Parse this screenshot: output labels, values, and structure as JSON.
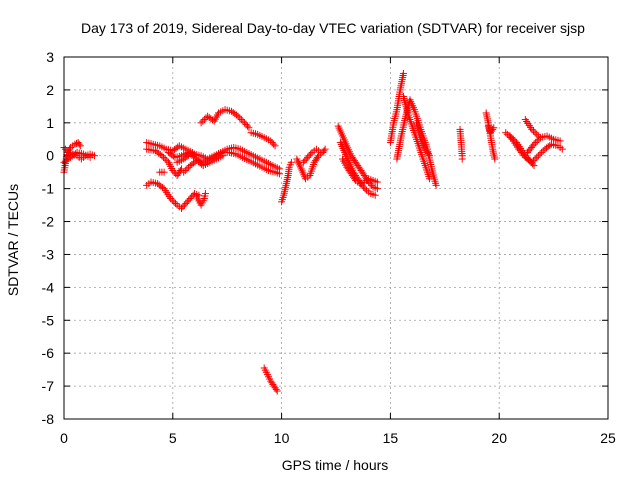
{
  "chart_data": {
    "type": "scatter",
    "title": "Day 173 of 2019, Sidereal Day-to-day VTEC variation (SDTVAR) for receiver sjsp",
    "xlabel": "GPS time / hours",
    "ylabel": "SDTVAR / TECUs",
    "xlim": [
      0,
      25
    ],
    "ylim": [
      -8,
      3
    ],
    "x_ticks": [
      "0",
      "5",
      "10",
      "15",
      "20",
      "25"
    ],
    "y_ticks": [
      "3",
      "2",
      "1",
      "0",
      "-1",
      "-2",
      "-3",
      "-4",
      "-5",
      "-6",
      "-7",
      "-8"
    ],
    "grid": true,
    "marker": "+",
    "marker_color": "#ff0000",
    "series": [
      {
        "name": "SDTVAR",
        "tracks": [
          [
            [
              0.0,
              -0.5
            ],
            [
              0.15,
              0.1
            ],
            [
              0.3,
              0.25
            ],
            [
              0.5,
              0.35
            ],
            [
              0.65,
              0.4
            ],
            [
              0.75,
              0.3
            ]
          ],
          [
            [
              0.0,
              0.25
            ],
            [
              0.2,
              0.1
            ],
            [
              0.4,
              0.05
            ],
            [
              0.6,
              0.0
            ],
            [
              0.8,
              -0.1
            ],
            [
              1.0,
              0.0
            ],
            [
              1.2,
              0.05
            ],
            [
              1.4,
              0.0
            ]
          ],
          [
            [
              0.0,
              -0.2
            ],
            [
              0.3,
              -0.05
            ],
            [
              0.6,
              0.1
            ],
            [
              0.9,
              0.05
            ],
            [
              1.2,
              -0.05
            ]
          ],
          [
            [
              3.8,
              0.4
            ],
            [
              4.1,
              0.35
            ],
            [
              4.4,
              0.3
            ],
            [
              4.7,
              0.2
            ],
            [
              5.0,
              0.15
            ],
            [
              5.3,
              0.3
            ],
            [
              5.6,
              0.2
            ],
            [
              5.9,
              0.1
            ]
          ],
          [
            [
              3.8,
              0.2
            ],
            [
              4.2,
              0.15
            ],
            [
              4.5,
              0.0
            ],
            [
              4.8,
              -0.2
            ],
            [
              5.0,
              -0.45
            ],
            [
              5.2,
              -0.6
            ],
            [
              5.4,
              -0.4
            ]
          ],
          [
            [
              3.8,
              -0.9
            ],
            [
              4.0,
              -0.8
            ],
            [
              4.3,
              -0.85
            ],
            [
              4.6,
              -1.0
            ],
            [
              4.9,
              -1.3
            ],
            [
              5.2,
              -1.5
            ],
            [
              5.4,
              -1.6
            ],
            [
              5.6,
              -1.45
            ],
            [
              5.8,
              -1.3
            ],
            [
              6.0,
              -1.15
            ],
            [
              6.2,
              -1.2
            ]
          ],
          [
            [
              6.1,
              -1.25
            ],
            [
              6.3,
              -1.5
            ],
            [
              6.45,
              -1.3
            ],
            [
              6.5,
              -1.15
            ]
          ],
          [
            [
              4.4,
              -0.5
            ],
            [
              4.6,
              -0.5
            ]
          ],
          [
            [
              4.8,
              0.1
            ],
            [
              5.1,
              -0.05
            ],
            [
              5.4,
              0.0
            ],
            [
              5.7,
              0.1
            ],
            [
              6.0,
              0.05
            ],
            [
              6.3,
              0.0
            ],
            [
              6.6,
              -0.1
            ],
            [
              6.9,
              0.0
            ],
            [
              7.2,
              0.1
            ],
            [
              7.5,
              0.2
            ],
            [
              7.8,
              0.25
            ],
            [
              8.1,
              0.2
            ],
            [
              8.4,
              0.1
            ],
            [
              8.7,
              0.0
            ],
            [
              9.0,
              -0.1
            ],
            [
              9.3,
              -0.2
            ],
            [
              9.6,
              -0.3
            ],
            [
              9.9,
              -0.4
            ]
          ],
          [
            [
              5.2,
              -0.2
            ],
            [
              5.5,
              -0.1
            ],
            [
              5.8,
              0.05
            ],
            [
              6.1,
              -0.1
            ],
            [
              6.4,
              -0.2
            ],
            [
              6.7,
              -0.1
            ],
            [
              7.0,
              0.0
            ],
            [
              7.3,
              0.1
            ],
            [
              7.6,
              0.1
            ],
            [
              7.9,
              0.05
            ],
            [
              8.2,
              -0.05
            ],
            [
              8.5,
              -0.15
            ],
            [
              8.8,
              -0.25
            ],
            [
              9.1,
              -0.35
            ],
            [
              9.4,
              -0.45
            ],
            [
              9.7,
              -0.5
            ],
            [
              9.9,
              -0.55
            ]
          ],
          [
            [
              5.5,
              -0.5
            ],
            [
              5.8,
              -0.3
            ],
            [
              6.1,
              -0.15
            ],
            [
              6.4,
              -0.3
            ],
            [
              6.7,
              -0.2
            ],
            [
              7.0,
              -0.1
            ],
            [
              7.3,
              0.0
            ]
          ],
          [
            [
              6.3,
              1.0
            ],
            [
              6.6,
              1.2
            ],
            [
              6.9,
              1.05
            ],
            [
              7.1,
              1.3
            ],
            [
              7.4,
              1.4
            ],
            [
              7.7,
              1.35
            ],
            [
              8.0,
              1.2
            ],
            [
              8.3,
              1.0
            ],
            [
              8.5,
              0.85
            ]
          ],
          [
            [
              8.6,
              0.7
            ],
            [
              8.9,
              0.65
            ],
            [
              9.2,
              0.55
            ],
            [
              9.5,
              0.45
            ],
            [
              9.7,
              0.3
            ]
          ],
          [
            [
              9.2,
              -6.45
            ],
            [
              9.35,
              -6.65
            ],
            [
              9.5,
              -6.85
            ],
            [
              9.65,
              -7.0
            ],
            [
              9.8,
              -7.15
            ]
          ],
          [
            [
              10.0,
              -1.4
            ],
            [
              10.1,
              -1.2
            ],
            [
              10.2,
              -0.9
            ],
            [
              10.3,
              -0.6
            ],
            [
              10.35,
              -0.35
            ],
            [
              10.45,
              -0.2
            ]
          ],
          [
            [
              10.7,
              -0.1
            ],
            [
              10.9,
              -0.4
            ],
            [
              11.1,
              -0.7
            ],
            [
              11.3,
              -0.6
            ],
            [
              11.5,
              -0.2
            ],
            [
              11.7,
              0.0
            ],
            [
              11.9,
              0.1
            ],
            [
              12.0,
              0.2
            ]
          ],
          [
            [
              11.0,
              -0.2
            ],
            [
              11.2,
              -0.05
            ],
            [
              11.4,
              0.1
            ],
            [
              11.6,
              0.2
            ],
            [
              11.8,
              0.1
            ]
          ],
          [
            [
              12.6,
              0.9
            ],
            [
              12.8,
              0.6
            ],
            [
              13.0,
              0.3
            ],
            [
              13.2,
              0.0
            ],
            [
              13.4,
              -0.2
            ],
            [
              13.6,
              -0.4
            ],
            [
              13.8,
              -0.6
            ],
            [
              14.0,
              -0.8
            ],
            [
              14.2,
              -0.95
            ],
            [
              14.4,
              -1.0
            ]
          ],
          [
            [
              12.7,
              0.4
            ],
            [
              12.9,
              0.1
            ],
            [
              13.1,
              -0.2
            ],
            [
              13.3,
              -0.5
            ],
            [
              13.5,
              -0.7
            ],
            [
              13.7,
              -0.9
            ],
            [
              13.9,
              -1.05
            ],
            [
              14.1,
              -1.15
            ],
            [
              14.3,
              -1.2
            ]
          ],
          [
            [
              12.8,
              -0.1
            ],
            [
              13.0,
              -0.35
            ],
            [
              13.2,
              -0.55
            ],
            [
              13.4,
              -0.75
            ],
            [
              13.6,
              -0.85
            ],
            [
              13.8,
              -0.8
            ],
            [
              14.0,
              -0.7
            ],
            [
              14.2,
              -0.75
            ],
            [
              14.4,
              -0.8
            ]
          ],
          [
            [
              15.0,
              0.4
            ],
            [
              15.15,
              1.0
            ],
            [
              15.3,
              1.4
            ],
            [
              15.45,
              2.0
            ],
            [
              15.6,
              2.5
            ]
          ],
          [
            [
              15.3,
              -0.1
            ],
            [
              15.5,
              0.6
            ],
            [
              15.7,
              1.2
            ],
            [
              15.9,
              1.7
            ],
            [
              16.1,
              1.4
            ],
            [
              16.3,
              1.0
            ],
            [
              16.5,
              0.6
            ],
            [
              16.7,
              0.2
            ],
            [
              16.9,
              -0.4
            ],
            [
              17.1,
              -0.9
            ]
          ],
          [
            [
              15.6,
              1.8
            ],
            [
              15.8,
              1.3
            ],
            [
              16.0,
              0.9
            ],
            [
              16.2,
              0.5
            ],
            [
              16.4,
              0.1
            ],
            [
              16.6,
              -0.3
            ],
            [
              16.8,
              -0.7
            ]
          ],
          [
            [
              16.2,
              1.0
            ],
            [
              16.4,
              0.5
            ],
            [
              16.6,
              0.2
            ],
            [
              16.8,
              0.0
            ]
          ],
          [
            [
              18.2,
              0.8
            ],
            [
              18.25,
              0.4
            ],
            [
              18.3,
              0.0
            ],
            [
              18.3,
              -0.1
            ]
          ],
          [
            [
              19.4,
              1.3
            ],
            [
              19.5,
              1.0
            ],
            [
              19.6,
              0.6
            ],
            [
              19.7,
              0.2
            ],
            [
              19.8,
              -0.1
            ]
          ],
          [
            [
              19.5,
              0.9
            ],
            [
              19.6,
              0.7
            ],
            [
              19.75,
              0.85
            ]
          ],
          [
            [
              20.3,
              0.7
            ],
            [
              20.6,
              0.5
            ],
            [
              20.9,
              0.2
            ],
            [
              21.2,
              -0.05
            ],
            [
              21.5,
              -0.2
            ],
            [
              21.8,
              0.0
            ],
            [
              22.1,
              0.2
            ],
            [
              22.4,
              0.35
            ],
            [
              22.7,
              0.3
            ],
            [
              22.9,
              0.2
            ]
          ],
          [
            [
              20.5,
              0.6
            ],
            [
              20.8,
              0.4
            ],
            [
              21.1,
              0.1
            ],
            [
              21.4,
              -0.15
            ],
            [
              21.6,
              -0.3
            ]
          ],
          [
            [
              21.3,
              0.1
            ],
            [
              21.6,
              0.35
            ],
            [
              21.9,
              0.55
            ],
            [
              22.2,
              0.6
            ],
            [
              22.5,
              0.5
            ],
            [
              22.8,
              0.45
            ]
          ],
          [
            [
              21.2,
              1.1
            ],
            [
              21.5,
              0.8
            ],
            [
              21.8,
              0.6
            ]
          ]
        ]
      }
    ]
  }
}
